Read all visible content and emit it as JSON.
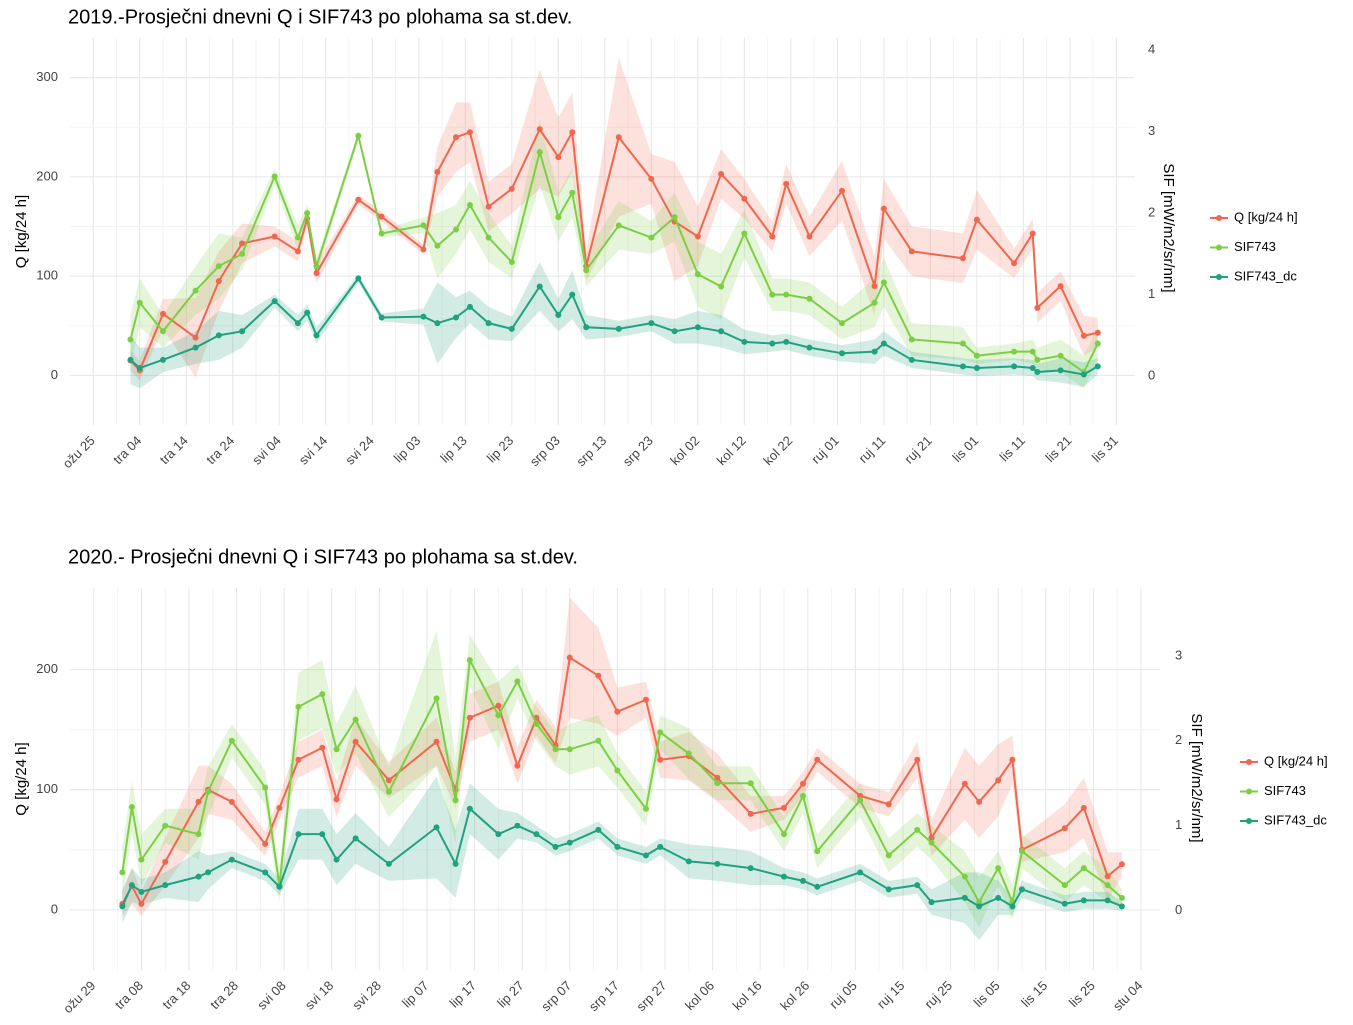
{
  "chart_data": [
    {
      "type": "line",
      "title": "2019.-Prosječni dnevni Q i SIF743 po plohama sa st.dev.",
      "y_label": "Q [kg/24 h]",
      "y2_label": "SIF [mW/m2/sr/nm]",
      "grid": true,
      "legend": "right",
      "xlim": [
        "03-20",
        "11-04"
      ],
      "xticks": [
        {
          "value": "03-25",
          "label": "ožu 25"
        },
        {
          "value": "04-04",
          "label": "tra 04"
        },
        {
          "value": "04-14",
          "label": "tra 14"
        },
        {
          "value": "04-24",
          "label": "tra 24"
        },
        {
          "value": "05-04",
          "label": "svi 04"
        },
        {
          "value": "05-14",
          "label": "svi 14"
        },
        {
          "value": "05-24",
          "label": "svi 24"
        },
        {
          "value": "06-03",
          "label": "lip 03"
        },
        {
          "value": "06-13",
          "label": "lip 13"
        },
        {
          "value": "06-23",
          "label": "lip 23"
        },
        {
          "value": "07-03",
          "label": "srp 03"
        },
        {
          "value": "07-13",
          "label": "srp 13"
        },
        {
          "value": "07-23",
          "label": "srp 23"
        },
        {
          "value": "08-02",
          "label": "kol 02"
        },
        {
          "value": "08-12",
          "label": "kol 12"
        },
        {
          "value": "08-22",
          "label": "kol 22"
        },
        {
          "value": "09-01",
          "label": "ruj 01"
        },
        {
          "value": "09-11",
          "label": "ruj 11"
        },
        {
          "value": "09-21",
          "label": "ruj 21"
        },
        {
          "value": "10-01",
          "label": "lis 01"
        },
        {
          "value": "10-11",
          "label": "lis 11"
        },
        {
          "value": "10-21",
          "label": "lis 21"
        },
        {
          "value": "10-31",
          "label": "lis 31"
        }
      ],
      "ylim": [
        -50,
        340
      ],
      "yticks": [
        0,
        100,
        200,
        300
      ],
      "y2lim": [
        -0.6,
        4.15
      ],
      "y2ticks": [
        0,
        1,
        2,
        3,
        4
      ],
      "x": [
        "04-02",
        "04-04",
        "04-09",
        "04-16",
        "04-21",
        "04-26",
        "05-03",
        "05-08",
        "05-10",
        "05-12",
        "05-21",
        "05-26",
        "06-04",
        "06-07",
        "06-11",
        "06-14",
        "06-18",
        "06-23",
        "06-29",
        "07-03",
        "07-06",
        "07-09",
        "07-16",
        "07-23",
        "07-28",
        "08-02",
        "08-07",
        "08-12",
        "08-18",
        "08-21",
        "08-26",
        "09-02",
        "09-09",
        "09-11",
        "09-17",
        "09-28",
        "10-01",
        "10-09",
        "10-13",
        "10-14",
        "10-19",
        "10-24",
        "10-27"
      ],
      "series": [
        {
          "name": "Q [kg/24 h]",
          "color": "#f0674f",
          "axis": "y",
          "values": [
            15,
            5,
            62,
            38,
            95,
            133,
            140,
            125,
            158,
            103,
            177,
            160,
            127,
            205,
            240,
            245,
            170,
            188,
            248,
            220,
            245,
            110,
            240,
            198,
            155,
            140,
            203,
            178,
            140,
            193,
            140,
            186,
            90,
            168,
            125,
            118,
            157,
            113,
            143,
            68,
            90,
            40,
            43
          ],
          "sd": [
            10,
            10,
            15,
            40,
            30,
            20,
            10,
            10,
            8,
            10,
            5,
            5,
            5,
            25,
            35,
            30,
            25,
            25,
            60,
            40,
            40,
            15,
            80,
            25,
            60,
            30,
            25,
            20,
            15,
            20,
            20,
            30,
            30,
            30,
            25,
            25,
            30,
            15,
            15,
            15,
            15,
            20,
            15
          ]
        },
        {
          "name": "SIF743",
          "color": "#7ccf45",
          "axis": "y2",
          "values": [
            0.45,
            0.9,
            0.55,
            1.05,
            1.35,
            1.5,
            2.45,
            1.7,
            2.0,
            1.35,
            2.95,
            1.75,
            1.85,
            1.6,
            1.8,
            2.1,
            1.7,
            1.4,
            2.75,
            1.95,
            2.25,
            1.3,
            1.85,
            1.7,
            1.95,
            1.25,
            1.1,
            1.75,
            1.0,
            1.0,
            0.95,
            0.65,
            0.9,
            1.15,
            0.45,
            0.4,
            0.25,
            0.3,
            0.3,
            0.2,
            0.25,
            0.05,
            0.4
          ],
          "sd": [
            0.3,
            0.3,
            0.2,
            0.3,
            0.4,
            0.2,
            0.1,
            0.15,
            0.1,
            0.1,
            0.05,
            0.05,
            0.1,
            0.4,
            0.3,
            0.3,
            0.3,
            0.2,
            0.4,
            0.3,
            0.3,
            0.2,
            0.3,
            0.2,
            0.3,
            0.4,
            0.4,
            0.3,
            0.2,
            0.2,
            0.2,
            0.2,
            0.3,
            0.3,
            0.2,
            0.2,
            0.1,
            0.1,
            0.15,
            0.15,
            0.2,
            0.2,
            0.2
          ]
        },
        {
          "name": "SIF743_dc",
          "color": "#1fa27f",
          "axis": "y2",
          "values": [
            0.2,
            0.1,
            0.2,
            0.35,
            0.5,
            0.55,
            0.92,
            0.65,
            0.78,
            0.5,
            1.2,
            0.72,
            0.73,
            0.65,
            0.72,
            0.85,
            0.65,
            0.58,
            1.1,
            0.75,
            1.0,
            0.6,
            0.58,
            0.65,
            0.55,
            0.6,
            0.55,
            0.42,
            0.4,
            0.42,
            0.35,
            0.28,
            0.3,
            0.4,
            0.2,
            0.12,
            0.1,
            0.12,
            0.1,
            0.05,
            0.07,
            0.02,
            0.12
          ],
          "sd": [
            0.3,
            0.25,
            0.15,
            0.2,
            0.3,
            0.2,
            0.08,
            0.1,
            0.1,
            0.1,
            0.05,
            0.05,
            0.1,
            0.5,
            0.25,
            0.2,
            0.2,
            0.15,
            0.3,
            0.2,
            0.3,
            0.15,
            0.1,
            0.1,
            0.15,
            0.2,
            0.2,
            0.15,
            0.1,
            0.1,
            0.1,
            0.1,
            0.15,
            0.15,
            0.1,
            0.1,
            0.1,
            0.1,
            0.1,
            0.1,
            0.15,
            0.15,
            0.1
          ]
        }
      ]
    },
    {
      "type": "line",
      "title": "2020.- Prosječni dnevni Q i SIF743 po plohama sa st.dev.",
      "y_label": "Q [kg/24 h]",
      "y2_label": "SIF [mW/m2/sr/nm]",
      "grid": true,
      "legend": "right",
      "xlim": [
        "03-24",
        "11-08"
      ],
      "xticks": [
        {
          "value": "03-29",
          "label": "ožu 29"
        },
        {
          "value": "04-08",
          "label": "tra 08"
        },
        {
          "value": "04-18",
          "label": "tra 18"
        },
        {
          "value": "04-28",
          "label": "tra 28"
        },
        {
          "value": "05-08",
          "label": "svi 08"
        },
        {
          "value": "05-18",
          "label": "svi 18"
        },
        {
          "value": "05-28",
          "label": "svi 28"
        },
        {
          "value": "06-07",
          "label": "lip 07"
        },
        {
          "value": "06-17",
          "label": "lip 17"
        },
        {
          "value": "06-27",
          "label": "lip 27"
        },
        {
          "value": "07-07",
          "label": "srp 07"
        },
        {
          "value": "07-17",
          "label": "srp 17"
        },
        {
          "value": "07-27",
          "label": "srp 27"
        },
        {
          "value": "08-06",
          "label": "kol 06"
        },
        {
          "value": "08-16",
          "label": "kol 16"
        },
        {
          "value": "08-26",
          "label": "kol 26"
        },
        {
          "value": "09-05",
          "label": "ruj 05"
        },
        {
          "value": "09-15",
          "label": "ruj 15"
        },
        {
          "value": "09-25",
          "label": "ruj 25"
        },
        {
          "value": "10-05",
          "label": "lis 05"
        },
        {
          "value": "10-15",
          "label": "lis 15"
        },
        {
          "value": "10-25",
          "label": "lis 25"
        },
        {
          "value": "11-04",
          "label": "stu 04"
        }
      ],
      "ylim": [
        -50,
        268
      ],
      "yticks": [
        0,
        100,
        200
      ],
      "y2lim": [
        -0.7,
        3.8
      ],
      "y2ticks": [
        0,
        1,
        2,
        3
      ],
      "x": [
        "04-04",
        "04-06",
        "04-08",
        "04-13",
        "04-20",
        "04-22",
        "04-27",
        "05-04",
        "05-07",
        "05-11",
        "05-16",
        "05-19",
        "05-23",
        "05-30",
        "06-09",
        "06-13",
        "06-16",
        "06-22",
        "06-26",
        "06-30",
        "07-04",
        "07-07",
        "07-13",
        "07-17",
        "07-23",
        "07-26",
        "08-01",
        "08-07",
        "08-14",
        "08-21",
        "08-25",
        "08-28",
        "09-06",
        "09-12",
        "09-18",
        "09-21",
        "09-28",
        "10-01",
        "10-05",
        "10-08",
        "10-10",
        "10-19",
        "10-23",
        "10-28",
        "10-31"
      ],
      "series": [
        {
          "name": "Q [kg/24 h]",
          "color": "#f0674f",
          "axis": "y",
          "values": [
            5,
            20,
            5,
            40,
            90,
            100,
            90,
            55,
            85,
            125,
            135,
            92,
            140,
            108,
            140,
            100,
            160,
            170,
            120,
            160,
            137,
            210,
            195,
            165,
            175,
            125,
            128,
            110,
            80,
            85,
            105,
            125,
            95,
            88,
            125,
            60,
            105,
            90,
            108,
            125,
            50,
            68,
            85,
            28,
            38
          ],
          "sd": [
            10,
            15,
            10,
            20,
            30,
            20,
            15,
            10,
            10,
            15,
            15,
            15,
            20,
            15,
            20,
            15,
            20,
            20,
            15,
            15,
            15,
            50,
            40,
            20,
            15,
            15,
            20,
            20,
            15,
            10,
            10,
            10,
            10,
            10,
            15,
            15,
            30,
            30,
            30,
            20,
            10,
            20,
            25,
            20,
            10
          ]
        },
        {
          "name": "SIF743",
          "color": "#7ccf45",
          "axis": "y2",
          "values": [
            0.45,
            1.22,
            0.6,
            1.0,
            0.9,
            1.4,
            2.0,
            1.45,
            0.3,
            2.4,
            2.55,
            1.9,
            2.25,
            1.4,
            2.5,
            1.3,
            2.95,
            2.3,
            2.7,
            2.2,
            1.9,
            1.9,
            2.0,
            1.65,
            1.2,
            2.1,
            1.85,
            1.5,
            1.5,
            0.9,
            1.35,
            0.7,
            1.3,
            0.65,
            0.95,
            0.8,
            0.4,
            0.1,
            0.5,
            0.1,
            0.7,
            0.3,
            0.5,
            0.3,
            0.15
          ],
          "sd": [
            0.3,
            0.3,
            0.3,
            0.2,
            0.3,
            0.3,
            0.2,
            0.2,
            0.2,
            0.4,
            0.4,
            0.3,
            0.4,
            0.3,
            0.8,
            0.5,
            0.3,
            0.4,
            0.2,
            0.2,
            0.2,
            0.3,
            0.3,
            0.2,
            0.2,
            0.2,
            0.3,
            0.2,
            0.2,
            0.2,
            0.2,
            0.2,
            0.2,
            0.2,
            0.2,
            0.2,
            0.3,
            0.3,
            0.2,
            0.2,
            0.2,
            0.2,
            0.2,
            0.2,
            0.1
          ]
        },
        {
          "name": "SIF743_dc",
          "color": "#1fa27f",
          "axis": "y2",
          "values": [
            0.05,
            0.3,
            0.22,
            0.3,
            0.4,
            0.45,
            0.6,
            0.45,
            0.28,
            0.9,
            0.9,
            0.6,
            0.85,
            0.55,
            0.98,
            0.55,
            1.2,
            0.9,
            1.0,
            0.9,
            0.75,
            0.8,
            0.95,
            0.75,
            0.65,
            0.75,
            0.58,
            0.55,
            0.5,
            0.4,
            0.35,
            0.28,
            0.45,
            0.25,
            0.3,
            0.1,
            0.15,
            0.05,
            0.15,
            0.05,
            0.25,
            0.08,
            0.12,
            0.12,
            0.05
          ],
          "sd": [
            0.2,
            0.2,
            0.15,
            0.15,
            0.3,
            0.2,
            0.1,
            0.1,
            0.1,
            0.3,
            0.3,
            0.3,
            0.3,
            0.2,
            0.6,
            0.4,
            0.3,
            0.3,
            0.15,
            0.1,
            0.1,
            0.1,
            0.1,
            0.1,
            0.1,
            0.1,
            0.2,
            0.2,
            0.2,
            0.1,
            0.1,
            0.1,
            0.1,
            0.1,
            0.1,
            0.15,
            0.3,
            0.4,
            0.2,
            0.1,
            0.1,
            0.1,
            0.1,
            0.1,
            0.05
          ]
        }
      ]
    }
  ]
}
